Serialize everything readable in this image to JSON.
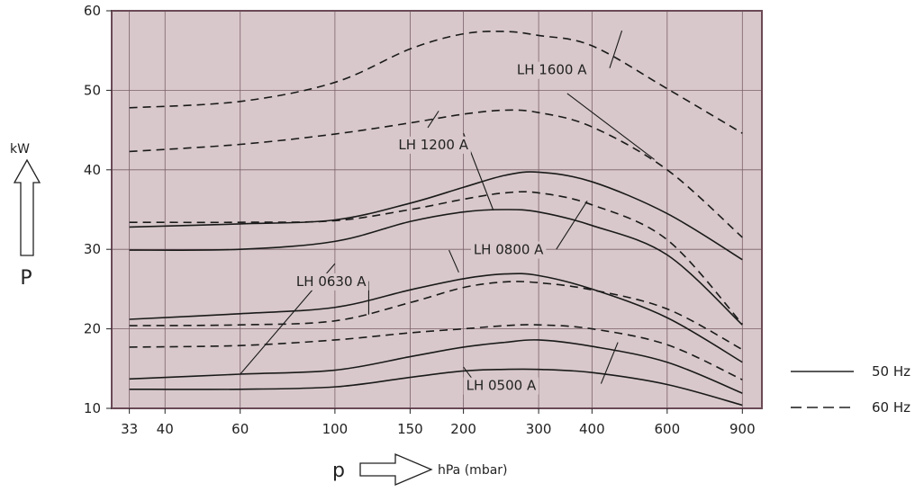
{
  "chart_data": {
    "type": "line",
    "x_scale": "log",
    "xlim": [
      30,
      1000
    ],
    "ylim": [
      10,
      60
    ],
    "x_ticks": [
      33,
      40,
      60,
      100,
      150,
      200,
      300,
      400,
      600,
      900
    ],
    "y_ticks": [
      10,
      20,
      30,
      40,
      50,
      60
    ],
    "grid": true,
    "background": "#d8c8cb",
    "frame_color": "#6b4a56",
    "y_unit": "kW",
    "y_symbol": "P",
    "x_symbol": "p",
    "x_unit": "hPa (mbar)",
    "legend": [
      {
        "label": "50 Hz",
        "style": "solid"
      },
      {
        "label": "60 Hz",
        "style": "dashed"
      }
    ],
    "series": [
      {
        "hz": "60",
        "style": "dashed",
        "points": [
          [
            33,
            47.8
          ],
          [
            60,
            48.6
          ],
          [
            100,
            51
          ],
          [
            150,
            55.2
          ],
          [
            200,
            57.1
          ],
          [
            250,
            57.4
          ],
          [
            300,
            56.9
          ],
          [
            400,
            55.6
          ],
          [
            600,
            50.2
          ],
          [
            900,
            44.6
          ]
        ]
      },
      {
        "hz": "60",
        "style": "dashed",
        "points": [
          [
            33,
            42.3
          ],
          [
            60,
            43.2
          ],
          [
            100,
            44.5
          ],
          [
            150,
            45.9
          ],
          [
            200,
            47
          ],
          [
            250,
            47.5
          ],
          [
            300,
            47.2
          ],
          [
            400,
            45.4
          ],
          [
            600,
            40
          ],
          [
            900,
            31.5
          ]
        ]
      },
      {
        "hz": "50",
        "style": "solid",
        "points": [
          [
            33,
            32.8
          ],
          [
            60,
            33.2
          ],
          [
            100,
            33.7
          ],
          [
            150,
            35.8
          ],
          [
            200,
            37.8
          ],
          [
            250,
            39.3
          ],
          [
            300,
            39.7
          ],
          [
            400,
            38.5
          ],
          [
            600,
            34.5
          ],
          [
            900,
            28.7
          ]
        ]
      },
      {
        "hz": "60",
        "style": "dashed",
        "points": [
          [
            33,
            33.4
          ],
          [
            60,
            33.4
          ],
          [
            100,
            33.6
          ],
          [
            150,
            35
          ],
          [
            200,
            36.3
          ],
          [
            250,
            37.1
          ],
          [
            300,
            37.1
          ],
          [
            400,
            35.6
          ],
          [
            600,
            31.2
          ],
          [
            900,
            20.6
          ]
        ]
      },
      {
        "hz": "50",
        "style": "solid",
        "points": [
          [
            33,
            29.9
          ],
          [
            60,
            30
          ],
          [
            100,
            31
          ],
          [
            150,
            33.5
          ],
          [
            200,
            34.7
          ],
          [
            250,
            35
          ],
          [
            300,
            34.7
          ],
          [
            400,
            33
          ],
          [
            600,
            29.3
          ],
          [
            900,
            20.5
          ]
        ]
      },
      {
        "hz": "50",
        "style": "solid",
        "points": [
          [
            33,
            21.2
          ],
          [
            60,
            21.9
          ],
          [
            100,
            22.7
          ],
          [
            150,
            24.9
          ],
          [
            200,
            26.3
          ],
          [
            250,
            26.9
          ],
          [
            300,
            26.7
          ],
          [
            400,
            25
          ],
          [
            600,
            21.4
          ],
          [
            900,
            15.8
          ]
        ]
      },
      {
        "hz": "60",
        "style": "dashed",
        "points": [
          [
            33,
            20.4
          ],
          [
            60,
            20.5
          ],
          [
            100,
            21
          ],
          [
            150,
            23.3
          ],
          [
            200,
            25.2
          ],
          [
            250,
            25.9
          ],
          [
            300,
            25.8
          ],
          [
            400,
            24.9
          ],
          [
            600,
            22.5
          ],
          [
            900,
            17.4
          ]
        ]
      },
      {
        "hz": "60",
        "style": "dashed",
        "points": [
          [
            33,
            17.7
          ],
          [
            60,
            17.9
          ],
          [
            100,
            18.6
          ],
          [
            150,
            19.5
          ],
          [
            200,
            20
          ],
          [
            250,
            20.4
          ],
          [
            300,
            20.5
          ],
          [
            400,
            20
          ],
          [
            600,
            18
          ],
          [
            900,
            13.6
          ]
        ]
      },
      {
        "hz": "50",
        "style": "solid",
        "points": [
          [
            33,
            13.7
          ],
          [
            60,
            14.3
          ],
          [
            100,
            14.8
          ],
          [
            150,
            16.5
          ],
          [
            200,
            17.7
          ],
          [
            250,
            18.3
          ],
          [
            300,
            18.6
          ],
          [
            400,
            17.8
          ],
          [
            600,
            15.8
          ],
          [
            900,
            11.9
          ]
        ]
      },
      {
        "hz": "50",
        "style": "solid",
        "points": [
          [
            33,
            12.4
          ],
          [
            60,
            12.4
          ],
          [
            100,
            12.7
          ],
          [
            150,
            13.9
          ],
          [
            200,
            14.7
          ],
          [
            250,
            14.9
          ],
          [
            300,
            14.9
          ],
          [
            400,
            14.5
          ],
          [
            600,
            13
          ],
          [
            900,
            10.4
          ]
        ]
      }
    ],
    "annotations": [
      {
        "text": "LH 1600 A",
        "pointer": [
          [
            470,
            57.5
          ],
          [
            440,
            52.8
          ]
        ]
      },
      {
        "text": "LH 1200 A",
        "pointer": [
          [
            175,
            47.4
          ],
          [
            165,
            45.3
          ]
        ]
      },
      {
        "text": "LH 1600 A",
        "pointer": [
          [
            350,
            49.6
          ],
          [
            560,
            41.3
          ]
        ]
      },
      {
        "text": "LH 1200 A",
        "pointer": [
          [
            200,
            44.6
          ],
          [
            235,
            34.9
          ]
        ]
      },
      {
        "text": "LH 0800 A",
        "pointer": [
          [
            390,
            36.1
          ],
          [
            330,
            30
          ]
        ]
      },
      {
        "text": "LH 0800 A",
        "pointer": [
          [
            185,
            29.9
          ],
          [
            195,
            27.1
          ]
        ]
      },
      {
        "text": "LH 0630 A",
        "pointer": [
          [
            100,
            28.2
          ],
          [
            60,
            14.3
          ]
        ]
      },
      {
        "text": "LH 0630 A",
        "pointer": [
          [
            120,
            26
          ],
          [
            120,
            21.8
          ]
        ]
      },
      {
        "text": "LH 0500 A",
        "pointer": [
          [
            460,
            18.3
          ],
          [
            420,
            13.1
          ]
        ]
      },
      {
        "text": "LH 0500 A",
        "pointer": [
          [
            200,
            15.2
          ],
          [
            220,
            12.2
          ]
        ]
      }
    ],
    "curve_labels": [
      {
        "text": "LH 1600 A",
        "x": 322,
        "y": 52
      },
      {
        "text": "LH 1200 A",
        "x": 170,
        "y": 42.6
      },
      {
        "text": "LH 0800 A",
        "x": 255,
        "y": 29.4
      },
      {
        "text": "LH 0630 A",
        "x": 98,
        "y": 25.4
      },
      {
        "text": "LH 0500 A",
        "x": 245,
        "y": 12.3
      }
    ]
  }
}
